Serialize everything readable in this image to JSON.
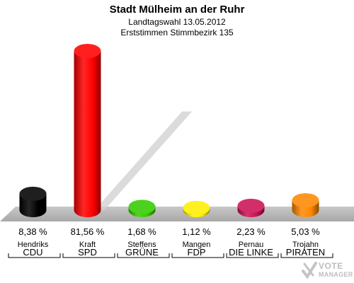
{
  "title": "Stadt Mülheim an der Ruhr",
  "subtitle1": "Landtagswahl 13.05.2012",
  "subtitle2": "Erststimmen Stimmbezirk 135",
  "logo": {
    "line1": "VOTE",
    "line2": "MANAGER",
    "icon": "checkmark-cross-icon"
  },
  "chart_data": {
    "type": "bar",
    "title": "Stadt Mülheim an der Ruhr",
    "categories": [
      "CDU",
      "SPD",
      "GRÜNE",
      "FDP",
      "DIE LINKE",
      "PIRATEN"
    ],
    "candidates": [
      "Hendriks",
      "Kraft",
      "Steffens",
      "Mangen",
      "Pernau",
      "Trojahn"
    ],
    "values": [
      8.38,
      81.56,
      1.68,
      1.12,
      2.23,
      5.03
    ],
    "value_labels": [
      "8,38 %",
      "81,56 %",
      "1,68 %",
      "1,12 %",
      "2,23 %",
      "5,03 %"
    ],
    "colors": [
      "#000000",
      "#ff0000",
      "#33cc00",
      "#ffee00",
      "#cc1155",
      "#ff8800"
    ],
    "ylim": [
      0,
      100
    ],
    "grid": false,
    "legend": "none"
  }
}
